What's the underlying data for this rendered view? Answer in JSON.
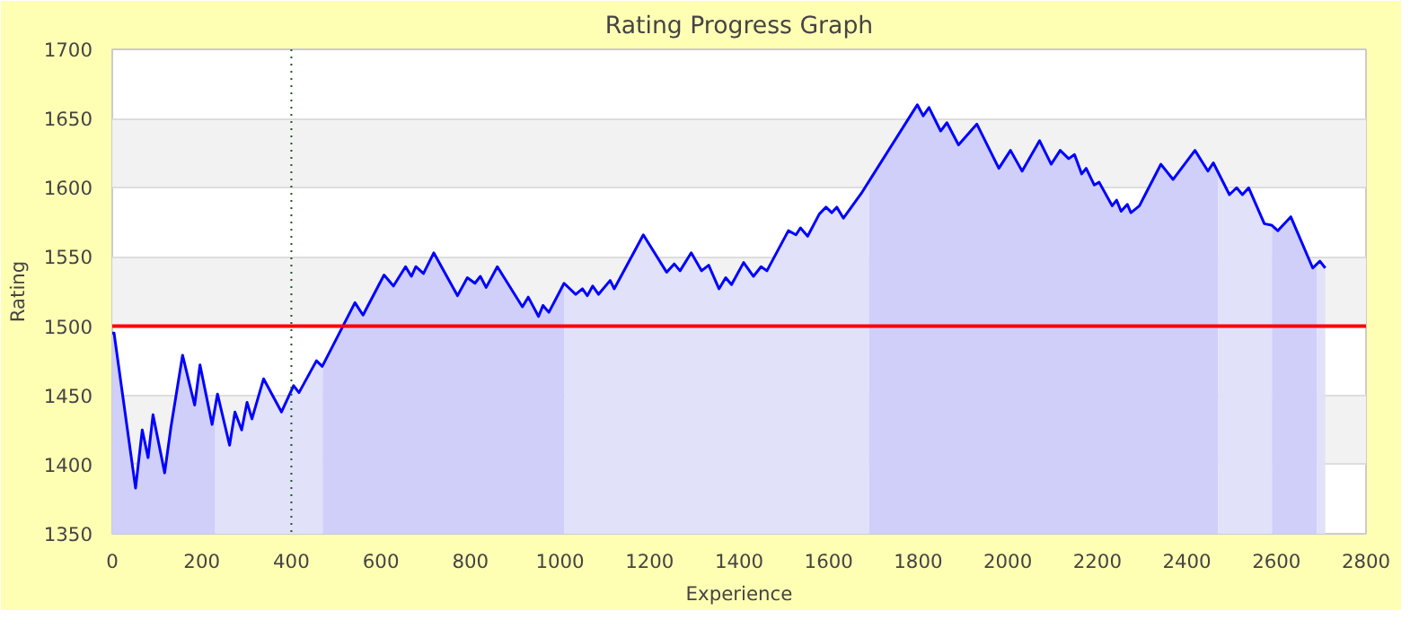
{
  "chart_data": {
    "type": "line",
    "title": "Rating Progress Graph",
    "xlabel": "Experience",
    "ylabel": "Rating",
    "xlim": [
      0,
      2800
    ],
    "xticks": [
      0,
      200,
      400,
      600,
      800,
      1000,
      1200,
      1400,
      1600,
      1800,
      2000,
      2200,
      2400,
      2600,
      2800
    ],
    "ylim": [
      1350,
      1700
    ],
    "yticks": [
      1350,
      1400,
      1450,
      1500,
      1550,
      1600,
      1650,
      1700
    ],
    "grid": "y",
    "marker": "none",
    "line_style": "solid",
    "ref_lines": [
      {
        "axis": "y",
        "value": 1500,
        "color": "#ff0000",
        "line_style": "solid"
      },
      {
        "axis": "x",
        "value": 400,
        "color": "#1a5a1a",
        "line_style": "dotted"
      }
    ],
    "series": [
      {
        "type": "area",
        "color": "#cfcffa",
        "x": [
          0,
          4,
          52,
          67,
          80,
          91,
          117,
          131,
          157,
          184,
          196,
          223,
          230
        ],
        "values": [
          1495,
          1495,
          1383,
          1425,
          1405,
          1436,
          1394,
          1427,
          1479,
          1443,
          1472,
          1429,
          1441
        ]
      },
      {
        "type": "area",
        "color": "#e1e1fa",
        "x": [
          230,
          235,
          262,
          274,
          289,
          301,
          312,
          338,
          378,
          405,
          417,
          456,
          469,
          470
        ],
        "values": [
          1441,
          1451,
          1414,
          1438,
          1425,
          1445,
          1433,
          1462,
          1438,
          1457,
          1452,
          1475,
          1471,
          1471
        ]
      },
      {
        "type": "area",
        "color": "#cfcffa",
        "x": [
          470,
          542,
          560,
          607,
          628,
          655,
          668,
          678,
          695,
          718,
          771,
          793,
          810,
          822,
          835,
          860,
          916,
          929,
          952,
          962,
          975,
          1009,
          1010
        ],
        "values": [
          1471,
          1517,
          1508,
          1537,
          1529,
          1543,
          1536,
          1543,
          1538,
          1553,
          1522,
          1535,
          1531,
          1536,
          1528,
          1543,
          1514,
          1521,
          1507,
          1515,
          1510,
          1531,
          1531
        ]
      },
      {
        "type": "area",
        "color": "#e1e1fa",
        "x": [
          1010,
          1035,
          1050,
          1061,
          1073,
          1086,
          1112,
          1121,
          1186,
          1238,
          1255,
          1268,
          1293,
          1316,
          1332,
          1355,
          1370,
          1383,
          1410,
          1432,
          1449,
          1462,
          1510,
          1527,
          1537,
          1553,
          1579,
          1594,
          1607,
          1618,
          1633,
          1673,
          1690
        ],
        "values": [
          1531,
          1523,
          1527,
          1522,
          1529,
          1523,
          1533,
          1527,
          1566,
          1539,
          1545,
          1540,
          1553,
          1540,
          1544,
          1527,
          1535,
          1530,
          1546,
          1536,
          1543,
          1540,
          1569,
          1566,
          1571,
          1565,
          1581,
          1586,
          1582,
          1586,
          1578,
          1596,
          1607
        ]
      },
      {
        "type": "area",
        "color": "#cfcffa",
        "x": [
          1690,
          1798,
          1811,
          1824,
          1850,
          1864,
          1890,
          1931,
          1980,
          2006,
          2032,
          2071,
          2097,
          2117,
          2136,
          2149,
          2165,
          2175,
          2193,
          2204,
          2233,
          2243,
          2253,
          2267,
          2275,
          2294,
          2342,
          2369,
          2418,
          2447,
          2459,
          2470
        ],
        "values": [
          1607,
          1660,
          1652,
          1658,
          1641,
          1647,
          1631,
          1646,
          1614,
          1627,
          1612,
          1634,
          1617,
          1627,
          1621,
          1624,
          1610,
          1614,
          1602,
          1604,
          1587,
          1591,
          1583,
          1588,
          1582,
          1587,
          1617,
          1606,
          1627,
          1612,
          1618,
          1611
        ]
      },
      {
        "type": "area",
        "color": "#e1e1fa",
        "x": [
          2470,
          2495,
          2511,
          2524,
          2538,
          2573,
          2589,
          2590
        ],
        "values": [
          1611,
          1595,
          1600,
          1595,
          1600,
          1574,
          1573,
          1573
        ]
      },
      {
        "type": "area",
        "color": "#cfcffa",
        "x": [
          2590,
          2603,
          2632,
          2681,
          2690
        ],
        "values": [
          1573,
          1569,
          1579,
          1542,
          1544
        ]
      },
      {
        "type": "area",
        "color": "#e1e1fa",
        "x": [
          2690,
          2697,
          2709
        ],
        "values": [
          1544,
          1547,
          1542
        ]
      },
      {
        "color": "#0000ff",
        "x": [
          0,
          4,
          52,
          67,
          80,
          91,
          117,
          131,
          157,
          184,
          196,
          223,
          235,
          262,
          274,
          289,
          301,
          312,
          338,
          378,
          405,
          417,
          456,
          469,
          542,
          560,
          607,
          628,
          655,
          668,
          678,
          695,
          718,
          771,
          793,
          810,
          822,
          835,
          860,
          916,
          929,
          952,
          962,
          975,
          1009,
          1035,
          1050,
          1061,
          1073,
          1086,
          1112,
          1121,
          1186,
          1238,
          1255,
          1268,
          1293,
          1316,
          1332,
          1355,
          1370,
          1383,
          1410,
          1432,
          1449,
          1462,
          1510,
          1527,
          1537,
          1553,
          1579,
          1594,
          1607,
          1618,
          1633,
          1673,
          1798,
          1811,
          1824,
          1850,
          1864,
          1890,
          1931,
          1980,
          2006,
          2032,
          2071,
          2097,
          2117,
          2136,
          2149,
          2165,
          2175,
          2193,
          2204,
          2233,
          2243,
          2253,
          2267,
          2275,
          2294,
          2342,
          2369,
          2418,
          2447,
          2459,
          2495,
          2511,
          2524,
          2538,
          2573,
          2589,
          2603,
          2632,
          2681,
          2697,
          2709
        ],
        "values": [
          1495,
          1495,
          1383,
          1425,
          1405,
          1436,
          1394,
          1427,
          1479,
          1443,
          1472,
          1429,
          1451,
          1414,
          1438,
          1425,
          1445,
          1433,
          1462,
          1438,
          1457,
          1452,
          1475,
          1471,
          1517,
          1508,
          1537,
          1529,
          1543,
          1536,
          1543,
          1538,
          1553,
          1522,
          1535,
          1531,
          1536,
          1528,
          1543,
          1514,
          1521,
          1507,
          1515,
          1510,
          1531,
          1523,
          1527,
          1522,
          1529,
          1523,
          1533,
          1527,
          1566,
          1539,
          1545,
          1540,
          1553,
          1540,
          1544,
          1527,
          1535,
          1530,
          1546,
          1536,
          1543,
          1540,
          1569,
          1566,
          1571,
          1565,
          1581,
          1586,
          1582,
          1586,
          1578,
          1596,
          1660,
          1652,
          1658,
          1641,
          1647,
          1631,
          1646,
          1614,
          1627,
          1612,
          1634,
          1617,
          1627,
          1621,
          1624,
          1610,
          1614,
          1602,
          1604,
          1587,
          1591,
          1583,
          1588,
          1582,
          1587,
          1617,
          1606,
          1627,
          1612,
          1618,
          1595,
          1600,
          1595,
          1600,
          1574,
          1573,
          1569,
          1579,
          1542,
          1547,
          1542
        ]
      }
    ]
  }
}
